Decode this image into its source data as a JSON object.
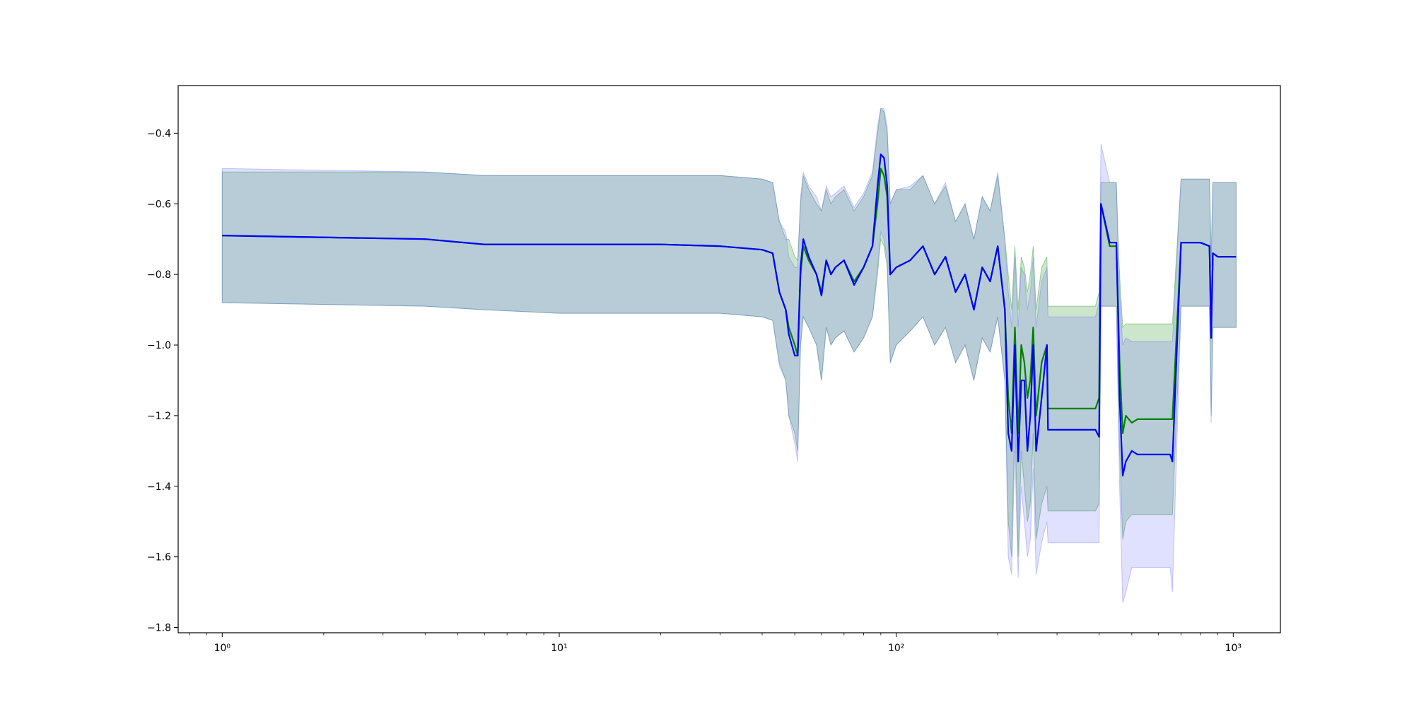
{
  "chart_data": {
    "type": "line",
    "title": "",
    "xlabel": "",
    "ylabel": "",
    "x_scale": "log",
    "xlim": [
      0.74,
      1380
    ],
    "ylim": [
      -1.815,
      -0.265
    ],
    "grid": false,
    "legend": "none",
    "x_ticks": [
      {
        "value": 1,
        "label": "10⁰"
      },
      {
        "value": 10,
        "label": "10¹"
      },
      {
        "value": 100,
        "label": "10²"
      },
      {
        "value": 1000,
        "label": "10³"
      }
    ],
    "y_ticks": [
      {
        "value": -0.4,
        "label": "−0.4"
      },
      {
        "value": -0.6,
        "label": "−0.6"
      },
      {
        "value": -0.8,
        "label": "−0.8"
      },
      {
        "value": -1.0,
        "label": "−1.0"
      },
      {
        "value": -1.2,
        "label": "−1.2"
      },
      {
        "value": -1.4,
        "label": "−1.4"
      },
      {
        "value": -1.6,
        "label": "−1.6"
      },
      {
        "value": -1.8,
        "label": "−1.8"
      }
    ],
    "series": [
      {
        "color": "#008000",
        "band_color": "#008000",
        "x": [
          1,
          4,
          6,
          10,
          20,
          30,
          40,
          43,
          45,
          47,
          48,
          50,
          51,
          52,
          53,
          55,
          58,
          60,
          62,
          64,
          66,
          70,
          75,
          80,
          85,
          88,
          90,
          92,
          94,
          96,
          100,
          110,
          120,
          130,
          140,
          150,
          160,
          170,
          180,
          190,
          200,
          210,
          215,
          220,
          225,
          230,
          235,
          240,
          245,
          250,
          255,
          260,
          270,
          280,
          282,
          300,
          350,
          390,
          400,
          405,
          430,
          440,
          450,
          455,
          460,
          470,
          480,
          500,
          520,
          550,
          600,
          650,
          660,
          700,
          800,
          850,
          860,
          870,
          900,
          950,
          1000,
          1020
        ],
        "y": [
          -0.69,
          -0.7,
          -0.715,
          -0.715,
          -0.715,
          -0.72,
          -0.73,
          -0.74,
          -0.85,
          -0.9,
          -0.95,
          -1.0,
          -1.03,
          -0.8,
          -0.72,
          -0.76,
          -0.8,
          -0.85,
          -0.76,
          -0.8,
          -0.78,
          -0.76,
          -0.82,
          -0.78,
          -0.72,
          -0.6,
          -0.5,
          -0.52,
          -0.58,
          -0.8,
          -0.78,
          -0.76,
          -0.72,
          -0.8,
          -0.75,
          -0.85,
          -0.8,
          -0.9,
          -0.78,
          -0.82,
          -0.72,
          -0.9,
          -1.15,
          -1.25,
          -0.95,
          -1.25,
          -1.0,
          -1.05,
          -1.15,
          -1.1,
          -0.95,
          -1.2,
          -1.05,
          -1.0,
          -1.18,
          -1.18,
          -1.18,
          -1.18,
          -1.15,
          -0.6,
          -0.72,
          -0.72,
          -0.72,
          -0.88,
          -1.05,
          -1.25,
          -1.2,
          -1.22,
          -1.21,
          -1.21,
          -1.21,
          -1.21,
          -1.21,
          -0.71,
          -0.71,
          -0.72,
          -0.95,
          -0.74,
          -0.75,
          -0.75,
          -0.75,
          -0.75
        ],
        "lower": [
          -0.88,
          -0.89,
          -0.9,
          -0.91,
          -0.91,
          -0.91,
          -0.92,
          -0.93,
          -1.05,
          -1.1,
          -1.2,
          -1.25,
          -1.3,
          -1.0,
          -0.92,
          -0.95,
          -1.0,
          -1.1,
          -0.95,
          -1.0,
          -0.98,
          -0.96,
          -1.02,
          -0.98,
          -0.92,
          -0.8,
          -0.7,
          -0.72,
          -0.78,
          -1.05,
          -1.0,
          -0.96,
          -0.92,
          -1.0,
          -0.95,
          -1.05,
          -1.0,
          -1.1,
          -0.98,
          -1.02,
          -0.92,
          -1.1,
          -1.5,
          -1.6,
          -1.2,
          -1.6,
          -1.3,
          -1.4,
          -1.5,
          -1.45,
          -1.25,
          -1.55,
          -1.45,
          -1.4,
          -1.47,
          -1.47,
          -1.47,
          -1.47,
          -1.45,
          -0.89,
          -0.89,
          -0.89,
          -0.89,
          -1.1,
          -1.3,
          -1.55,
          -1.5,
          -1.48,
          -1.48,
          -1.48,
          -1.48,
          -1.48,
          -1.48,
          -0.89,
          -0.89,
          -0.89,
          -1.2,
          -0.95,
          -0.95,
          -0.95,
          -0.95,
          -0.95
        ],
        "upper": [
          -0.51,
          -0.51,
          -0.52,
          -0.52,
          -0.52,
          -0.52,
          -0.53,
          -0.54,
          -0.65,
          -0.7,
          -0.7,
          -0.75,
          -0.76,
          -0.6,
          -0.52,
          -0.56,
          -0.6,
          -0.62,
          -0.56,
          -0.6,
          -0.58,
          -0.56,
          -0.62,
          -0.58,
          -0.52,
          -0.4,
          -0.33,
          -0.34,
          -0.4,
          -0.6,
          -0.56,
          -0.56,
          -0.52,
          -0.6,
          -0.55,
          -0.65,
          -0.6,
          -0.7,
          -0.58,
          -0.62,
          -0.52,
          -0.7,
          -0.8,
          -0.9,
          -0.72,
          -0.9,
          -0.75,
          -0.78,
          -0.85,
          -0.8,
          -0.72,
          -0.9,
          -0.78,
          -0.75,
          -0.89,
          -0.89,
          -0.89,
          -0.89,
          -0.85,
          -0.54,
          -0.54,
          -0.54,
          -0.54,
          -0.7,
          -0.8,
          -0.95,
          -0.94,
          -0.94,
          -0.94,
          -0.94,
          -0.94,
          -0.94,
          -0.94,
          -0.53,
          -0.53,
          -0.53,
          -0.75,
          -0.54,
          -0.54,
          -0.54,
          -0.54,
          -0.54
        ]
      },
      {
        "color": "#0000ff",
        "band_color": "#6666ff",
        "x": [
          1,
          4,
          6,
          10,
          20,
          30,
          40,
          43,
          45,
          47,
          48,
          50,
          51,
          52,
          53,
          55,
          58,
          60,
          62,
          64,
          66,
          70,
          75,
          80,
          85,
          88,
          90,
          92,
          94,
          96,
          100,
          110,
          120,
          130,
          140,
          150,
          160,
          170,
          180,
          190,
          200,
          210,
          215,
          220,
          225,
          230,
          235,
          240,
          245,
          250,
          255,
          260,
          270,
          280,
          282,
          300,
          350,
          390,
          400,
          405,
          430,
          440,
          450,
          455,
          460,
          470,
          480,
          500,
          520,
          550,
          600,
          650,
          660,
          700,
          800,
          850,
          860,
          870,
          900,
          950,
          1000,
          1020
        ],
        "y": [
          -0.69,
          -0.7,
          -0.715,
          -0.715,
          -0.715,
          -0.72,
          -0.73,
          -0.74,
          -0.85,
          -0.9,
          -0.97,
          -1.03,
          -1.03,
          -0.78,
          -0.7,
          -0.75,
          -0.8,
          -0.86,
          -0.76,
          -0.8,
          -0.78,
          -0.76,
          -0.83,
          -0.78,
          -0.72,
          -0.55,
          -0.46,
          -0.47,
          -0.55,
          -0.8,
          -0.78,
          -0.76,
          -0.72,
          -0.8,
          -0.75,
          -0.85,
          -0.8,
          -0.9,
          -0.78,
          -0.82,
          -0.72,
          -0.9,
          -1.25,
          -1.3,
          -1.0,
          -1.33,
          -1.1,
          -1.1,
          -1.3,
          -1.2,
          -1.0,
          -1.3,
          -1.15,
          -1.0,
          -1.24,
          -1.24,
          -1.24,
          -1.24,
          -1.26,
          -0.6,
          -0.71,
          -0.71,
          -0.71,
          -0.9,
          -1.15,
          -1.37,
          -1.33,
          -1.3,
          -1.31,
          -1.31,
          -1.31,
          -1.31,
          -1.33,
          -0.71,
          -0.71,
          -0.72,
          -0.98,
          -0.74,
          -0.75,
          -0.75,
          -0.75,
          -0.75
        ],
        "lower": [
          -0.88,
          -0.89,
          -0.9,
          -0.91,
          -0.91,
          -0.91,
          -0.92,
          -0.93,
          -1.06,
          -1.1,
          -1.2,
          -1.28,
          -1.33,
          -1.0,
          -0.92,
          -0.95,
          -1.0,
          -1.1,
          -0.95,
          -1.0,
          -0.98,
          -0.96,
          -1.02,
          -0.98,
          -0.92,
          -0.78,
          -0.68,
          -0.7,
          -0.76,
          -1.05,
          -1.0,
          -0.96,
          -0.92,
          -1.0,
          -0.95,
          -1.05,
          -1.0,
          -1.1,
          -0.98,
          -1.02,
          -0.92,
          -1.1,
          -1.6,
          -1.65,
          -1.3,
          -1.66,
          -1.4,
          -1.5,
          -1.6,
          -1.55,
          -1.35,
          -1.65,
          -1.56,
          -1.5,
          -1.56,
          -1.56,
          -1.56,
          -1.56,
          -1.56,
          -0.89,
          -0.89,
          -0.89,
          -0.89,
          -1.15,
          -1.4,
          -1.73,
          -1.7,
          -1.63,
          -1.63,
          -1.63,
          -1.63,
          -1.63,
          -1.7,
          -0.89,
          -0.89,
          -0.89,
          -1.22,
          -0.95,
          -0.95,
          -0.95,
          -0.95,
          -0.95
        ],
        "upper": [
          -0.5,
          -0.51,
          -0.52,
          -0.52,
          -0.52,
          -0.52,
          -0.53,
          -0.54,
          -0.65,
          -0.68,
          -0.75,
          -0.78,
          -0.78,
          -0.58,
          -0.51,
          -0.55,
          -0.58,
          -0.62,
          -0.55,
          -0.58,
          -0.57,
          -0.55,
          -0.61,
          -0.57,
          -0.51,
          -0.38,
          -0.33,
          -0.33,
          -0.38,
          -0.6,
          -0.56,
          -0.55,
          -0.52,
          -0.6,
          -0.54,
          -0.65,
          -0.6,
          -0.7,
          -0.58,
          -0.62,
          -0.51,
          -0.7,
          -0.85,
          -0.95,
          -0.75,
          -0.95,
          -0.78,
          -0.8,
          -0.9,
          -0.85,
          -0.75,
          -0.95,
          -0.82,
          -0.78,
          -0.92,
          -0.92,
          -0.92,
          -0.92,
          -0.88,
          -0.43,
          -0.54,
          -0.54,
          -0.54,
          -0.7,
          -0.85,
          -1.0,
          -0.98,
          -0.99,
          -0.99,
          -0.99,
          -0.99,
          -0.99,
          -0.99,
          -0.53,
          -0.53,
          -0.53,
          -0.78,
          -0.54,
          -0.54,
          -0.54,
          -0.54,
          -0.54
        ]
      }
    ]
  }
}
